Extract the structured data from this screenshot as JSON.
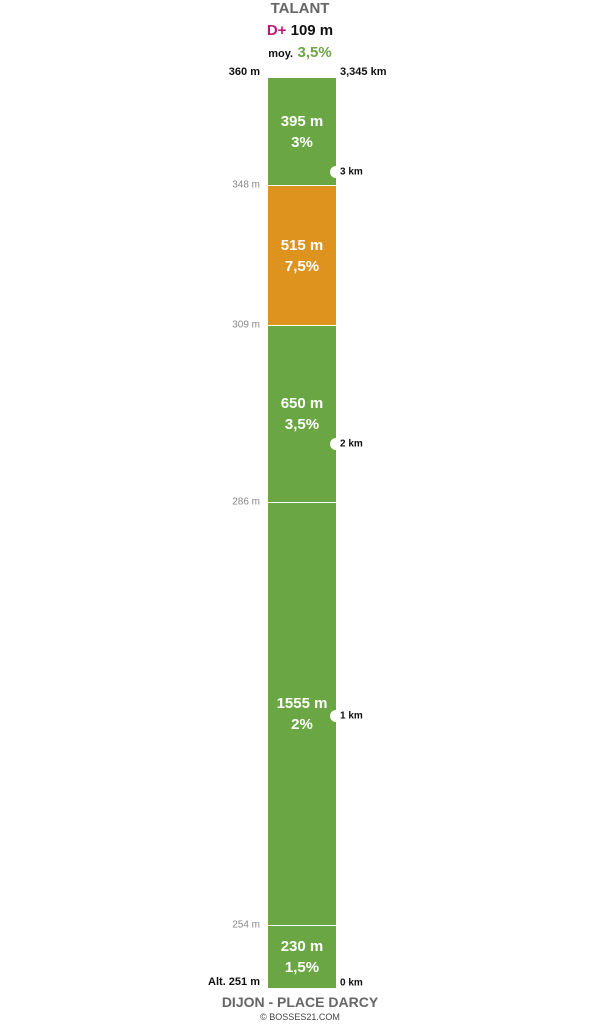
{
  "header": {
    "title": "TALANT",
    "gain_label": "D+",
    "gain": "109 m",
    "avg_label": "moy.",
    "avg": "3,5%"
  },
  "top": {
    "altitude": "360 m",
    "distance": "3,345 km"
  },
  "segments": [
    {
      "length": "395 m",
      "grade": "3%",
      "color": "#6ba644"
    },
    {
      "length": "515 m",
      "grade": "7,5%",
      "color": "#dd931d"
    },
    {
      "length": "650 m",
      "grade": "3,5%",
      "color": "#6ba644"
    },
    {
      "length": "1555 m",
      "grade": "2%",
      "color": "#6ba644"
    },
    {
      "length": "230 m",
      "grade": "1,5%",
      "color": "#6ba644"
    }
  ],
  "altitudes": [
    "348 m",
    "309 m",
    "286 m",
    "254 m"
  ],
  "km_markers": [
    "3 km",
    "2 km",
    "1 km",
    "0 km"
  ],
  "bottom": {
    "altitude": "Alt. 251 m",
    "name": "DIJON - PLACE DARCY",
    "credit": "© BOSSES21.COM"
  }
}
